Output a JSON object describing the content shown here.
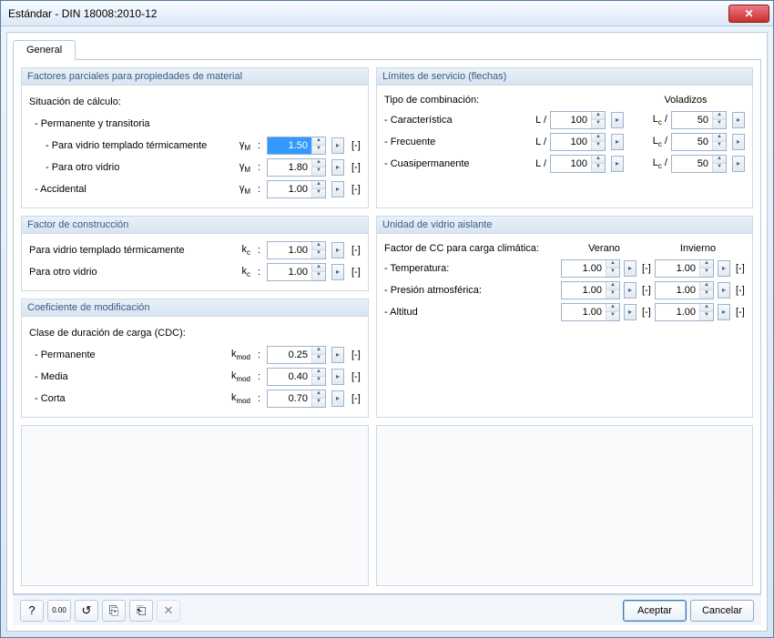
{
  "window": {
    "title": "Estándar - DIN 18008:2010-12"
  },
  "tab": {
    "general": "General"
  },
  "unit_brackets": "[-]",
  "symbols": {
    "gammaM": "γM",
    "kc": "kc",
    "kmod": "kmod",
    "L_slash": "L /",
    "Lc_slash": "Lc /"
  },
  "partial": {
    "header": "Factores parciales para propiedades de material",
    "situation_label": "Situación de cálculo:",
    "perm_trans": "- Permanente y transitoria",
    "tempered_label": "- Para vidrio templado térmicamente",
    "tempered_value": "1.50",
    "other_label": "- Para otro vidrio",
    "other_value": "1.80",
    "accidental_label": "- Accidental",
    "accidental_value": "1.00"
  },
  "service": {
    "header": "Límites de servicio (flechas)",
    "combo_label": "Tipo de combinación:",
    "cantilever_header": "Voladizos",
    "rows": [
      {
        "label": "- Característica",
        "L": "100",
        "Lc": "50"
      },
      {
        "label": "- Frecuente",
        "L": "100",
        "Lc": "50"
      },
      {
        "label": "- Cuasipermanente",
        "L": "100",
        "Lc": "50"
      }
    ]
  },
  "construction": {
    "header": "Factor de construcción",
    "tempered_label": "Para vidrio templado térmicamente",
    "tempered_value": "1.00",
    "other_label": "Para otro vidrio",
    "other_value": "1.00"
  },
  "igu": {
    "header": "Unidad de vidrio aislante",
    "cc_label": "Factor de CC para carga climática:",
    "summer": "Verano",
    "winter": "Invierno",
    "rows": [
      {
        "label": "- Temperatura:",
        "summer": "1.00",
        "winter": "1.00"
      },
      {
        "label": "- Presión atmosférica:",
        "summer": "1.00",
        "winter": "1.00"
      },
      {
        "label": "- Altitud",
        "summer": "1.00",
        "winter": "1.00"
      }
    ]
  },
  "mod": {
    "header": "Coeficiente de modificación",
    "class_label": "Clase de duración de carga (CDC):",
    "rows": [
      {
        "label": "- Permanente",
        "value": "0.25"
      },
      {
        "label": "- Media",
        "value": "0.40"
      },
      {
        "label": "- Corta",
        "value": "0.70"
      }
    ]
  },
  "footer": {
    "ok": "Aceptar",
    "cancel": "Cancelar"
  },
  "icons": {
    "help": "?",
    "decimals": "0.00",
    "units": "↺",
    "copy": "⎘",
    "paste": "⎗",
    "delete": "✕"
  },
  "colors": {
    "accent": "#3b5c7e",
    "border": "#b5c9dd",
    "highlight_bg": "#3399ff"
  }
}
